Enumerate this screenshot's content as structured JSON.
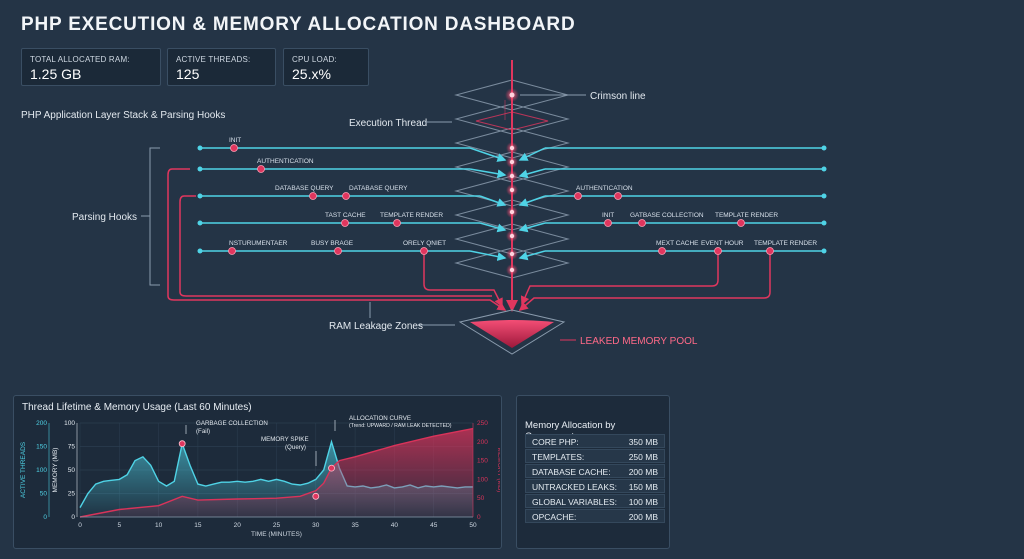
{
  "title": "PHP EXECUTION & MEMORY ALLOCATION DASHBOARD",
  "stats": [
    {
      "label": "TOTAL ALLOCATED RAM:",
      "value": "1.25 GB"
    },
    {
      "label": "ACTIVE THREADS:",
      "value": "125"
    },
    {
      "label": "CPU LOAD:",
      "value": "25.x%"
    }
  ],
  "diagram": {
    "section_title": "PHP Application Layer Stack & Parsing Hooks",
    "parsing_hooks_label": "Parsing Hooks",
    "execution_thread_label": "Execution Thread",
    "crimson_line_label": "Crimson line",
    "ram_leakage_label": "RAM Leakage Zones",
    "leaked_pool_label": "LEAKED MEMORY POOL",
    "left_hooks": [
      [
        "INIT"
      ],
      [
        "AUTHENTICATION"
      ],
      [
        "DATABASE QUERY",
        "DATABASE QUERY"
      ],
      [
        "TAST CACHE",
        "TEMPLATE RENDER"
      ],
      [
        "NSTURUMENTAER",
        "BUSY BRAGE",
        "ORELY QNIET"
      ]
    ],
    "right_hooks": [
      [],
      [],
      [
        "AUTHENTICATION"
      ],
      [
        "INIT",
        "GATBASE COLLECTION",
        "TEMPLATE RENDER"
      ],
      [
        "MEXT CACHE",
        "EVENT HOUR",
        "TEMPLATE RENDER"
      ]
    ]
  },
  "chart_panel": {
    "title": "Thread Lifetime & Memory Usage (Last 60 Minutes)"
  },
  "chart_data": {
    "type": "area",
    "title": "Thread Lifetime & Memory Usage (Last 60 Minutes)",
    "xlabel": "TIME (MINUTES)",
    "xlim": [
      0,
      50
    ],
    "x_ticks": [
      0,
      5,
      10,
      15,
      20,
      25,
      30,
      35,
      40,
      45,
      50
    ],
    "axes": [
      {
        "label": "ACTIVE THREADS",
        "ticks": [
          0,
          50,
          100,
          150,
          200
        ]
      },
      {
        "label": "MEMORY (MB)",
        "ticks": [
          0,
          25,
          50,
          75,
          100
        ]
      },
      {
        "label": "MEMORY (MB)",
        "ticks": [
          0,
          50,
          100,
          150,
          200,
          250
        ]
      }
    ],
    "series": [
      {
        "color": "#4fd3e6",
        "x": [
          0,
          1,
          2,
          3,
          4,
          5,
          6,
          7,
          8,
          9,
          10,
          11,
          12,
          13,
          14,
          15,
          16,
          17,
          18,
          19,
          20,
          21,
          22,
          23,
          24,
          25,
          26,
          27,
          28,
          29,
          30,
          31,
          32,
          33,
          34,
          35,
          36,
          37,
          38,
          39,
          40,
          41,
          42,
          43,
          44,
          45,
          46,
          47,
          48,
          49,
          50
        ],
        "values": [
          10,
          25,
          35,
          38,
          39,
          40,
          45,
          60,
          64,
          55,
          38,
          33,
          38,
          78,
          55,
          35,
          33,
          35,
          37,
          37,
          38,
          37,
          38,
          40,
          38,
          40,
          38,
          35,
          34,
          36,
          40,
          50,
          80,
          52,
          33,
          32,
          33,
          31,
          32,
          34,
          31,
          32,
          34,
          31,
          33,
          32,
          33,
          32,
          31,
          32,
          32
        ]
      },
      {
        "color": "#d9335a",
        "x": [
          0,
          5,
          10,
          13,
          15,
          20,
          25,
          28,
          30,
          31,
          32,
          33,
          35,
          40,
          45,
          50
        ],
        "values": [
          0,
          20,
          30,
          55,
          45,
          48,
          50,
          55,
          70,
          90,
          130,
          150,
          160,
          190,
          215,
          235
        ]
      }
    ],
    "annotations": [
      {
        "text": "GARBAGE COLLECTION",
        "sub": "(Fail)"
      },
      {
        "text": "MEMORY SPIKE",
        "sub": "(Query)"
      },
      {
        "text": "ALLOCATION CURVE",
        "sub": "(Trend: UPWARD / RAM LEAK DETECTED)"
      }
    ]
  },
  "memory_panel": {
    "title": "Memory Allocation by Component:",
    "rows": [
      {
        "label": "CORE PHP:",
        "value": "350 MB"
      },
      {
        "label": "TEMPLATES:",
        "value": "250 MB"
      },
      {
        "label": "DATABASE CACHE:",
        "value": "200 MB"
      },
      {
        "label": "UNTRACKED LEAKS:",
        "value": "150 MB"
      },
      {
        "label": "GLOBAL VARIABLES:",
        "value": "100 MB"
      },
      {
        "label": "OPCACHE:",
        "value": "200 MB"
      }
    ]
  },
  "colors": {
    "background": "#243446",
    "cyan": "#4fd3e6",
    "crimson": "#e0365e"
  }
}
